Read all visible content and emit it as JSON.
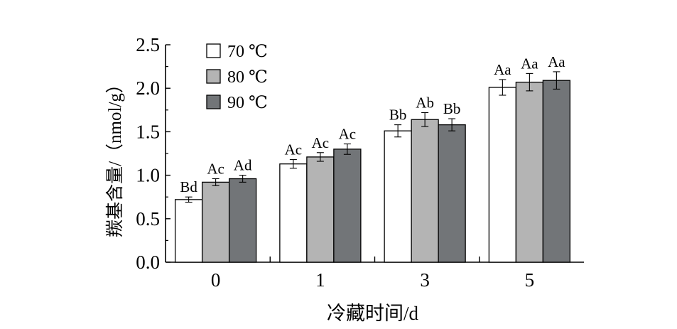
{
  "chart_data": {
    "type": "bar",
    "xlabel": "冷藏时间/d",
    "ylabel": "羰基含量/（nmol/g）",
    "categories": [
      "0",
      "1",
      "3",
      "5"
    ],
    "ylim": [
      0,
      2.5
    ],
    "yticks": [
      "0.0",
      "0.5",
      "1.0",
      "1.5",
      "2.0",
      "2.5"
    ],
    "grid": false,
    "legend_position": "top-left",
    "series": [
      {
        "name": "70 ℃",
        "color": "#ffffff",
        "values": [
          0.72,
          1.13,
          1.51,
          2.01
        ],
        "errors": [
          0.03,
          0.05,
          0.07,
          0.09
        ],
        "labels": [
          "Bd",
          "Ac",
          "Bb",
          "Aa"
        ]
      },
      {
        "name": "80 ℃",
        "color": "#b4b4b4",
        "values": [
          0.92,
          1.21,
          1.64,
          2.07
        ],
        "errors": [
          0.04,
          0.05,
          0.08,
          0.1
        ],
        "labels": [
          "Ac",
          "Ac",
          "Ab",
          "Aa"
        ]
      },
      {
        "name": "90 ℃",
        "color": "#727578",
        "values": [
          0.96,
          1.3,
          1.58,
          2.09
        ],
        "errors": [
          0.04,
          0.06,
          0.07,
          0.1
        ],
        "labels": [
          "Ad",
          "Ac",
          "Bb",
          "Aa"
        ]
      }
    ]
  }
}
